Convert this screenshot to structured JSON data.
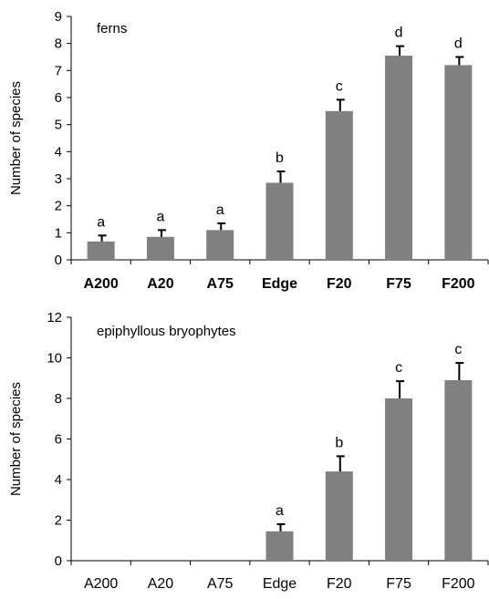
{
  "chart_data": [
    {
      "type": "bar",
      "title": "ferns",
      "xlabel": "",
      "ylabel": "Number of species",
      "ylim": [
        0,
        9
      ],
      "yticks": [
        0,
        1,
        2,
        3,
        4,
        5,
        6,
        7,
        8,
        9
      ],
      "categories": [
        "A200",
        "A20",
        "A75",
        "Edge",
        "F20",
        "F75",
        "F200"
      ],
      "categories_bold": true,
      "values": [
        0.68,
        0.85,
        1.1,
        2.85,
        5.5,
        7.55,
        7.2
      ],
      "errors": [
        0.22,
        0.25,
        0.25,
        0.42,
        0.42,
        0.35,
        0.3
      ],
      "letters": [
        "a",
        "a",
        "a",
        "b",
        "c",
        "d",
        "d"
      ],
      "bar_color": "#808080",
      "grid": false
    },
    {
      "type": "bar",
      "title": "epiphyllous bryophytes",
      "xlabel": "",
      "ylabel": "Number of species",
      "ylim": [
        0,
        12
      ],
      "yticks": [
        0,
        2,
        4,
        6,
        8,
        10,
        12
      ],
      "categories": [
        "A200",
        "A20",
        "A75",
        "Edge",
        "F20",
        "F75",
        "F200"
      ],
      "categories_bold": false,
      "values": [
        0,
        0,
        0,
        1.45,
        4.4,
        8.0,
        8.9
      ],
      "errors": [
        0,
        0,
        0,
        0.35,
        0.75,
        0.85,
        0.85
      ],
      "letters": [
        "",
        "",
        "",
        "a",
        "b",
        "c",
        "c"
      ],
      "bar_color": "#808080",
      "grid": false
    }
  ]
}
